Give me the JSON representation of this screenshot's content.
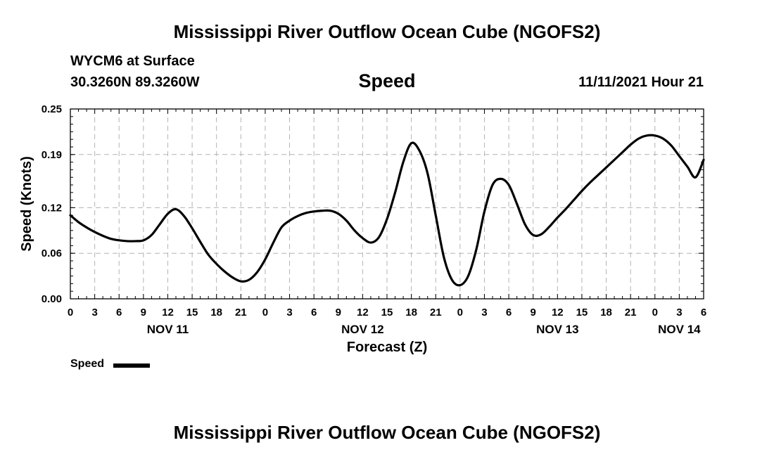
{
  "header": {
    "title": "Mississippi River Outflow Ocean Cube (NGOFS2)",
    "station": "WYCM6 at Surface",
    "coordinates": "30.3260N  89.3260W",
    "chart_name": "Speed",
    "timestamp": "11/11/2021 Hour 21"
  },
  "footer": {
    "title": "Mississippi River Outflow Ocean Cube (NGOFS2)"
  },
  "legend": {
    "label": "Speed",
    "color": "#000000"
  },
  "chart_data": {
    "type": "line",
    "title": "Speed",
    "xlabel": "Forecast (Z)",
    "ylabel": "Speed (Knots)",
    "x_unit": "hours since 11/11/2021 00Z",
    "xlim": [
      0,
      78
    ],
    "ylim": [
      0,
      0.25
    ],
    "y_ticks": [
      0.0,
      0.06,
      0.12,
      0.19,
      0.25
    ],
    "y_tick_labels": [
      "0.00",
      "0.06",
      "0.12",
      "0.19",
      "0.25"
    ],
    "x_ticks": [
      0,
      3,
      6,
      9,
      12,
      15,
      18,
      21,
      24,
      27,
      30,
      33,
      36,
      39,
      42,
      45,
      48,
      51,
      54,
      57,
      60,
      63,
      66,
      69,
      72,
      75,
      78
    ],
    "x_tick_labels": [
      "0",
      "3",
      "6",
      "9",
      "12",
      "15",
      "18",
      "21",
      "0",
      "3",
      "6",
      "9",
      "12",
      "15",
      "18",
      "21",
      "0",
      "3",
      "6",
      "9",
      "12",
      "15",
      "18",
      "21",
      "0",
      "3",
      "6"
    ],
    "day_labels": [
      {
        "x": 12,
        "label": "NOV 11"
      },
      {
        "x": 36,
        "label": "NOV 12"
      },
      {
        "x": 60,
        "label": "NOV 13"
      },
      {
        "x": 75,
        "label": "NOV 14"
      }
    ],
    "grid": true,
    "legend_position": "bottom-left",
    "series": [
      {
        "name": "Speed",
        "color": "#000000",
        "x": [
          0,
          1,
          2,
          3,
          4,
          5,
          6,
          7,
          8,
          9,
          10,
          11,
          12,
          13,
          14,
          15,
          16,
          17,
          18,
          19,
          20,
          21,
          22,
          23,
          24,
          25,
          26,
          27,
          28,
          29,
          30,
          31,
          32,
          33,
          34,
          35,
          36,
          37,
          38,
          39,
          40,
          41,
          42,
          43,
          44,
          45,
          46,
          47,
          48,
          49,
          50,
          51,
          52,
          53,
          54,
          55,
          56,
          57,
          58,
          59,
          60,
          61,
          62,
          63,
          64,
          65,
          66,
          67,
          68,
          69,
          70,
          71,
          72,
          73,
          74,
          75,
          76,
          77,
          78
        ],
        "values": [
          0.11,
          0.101,
          0.094,
          0.088,
          0.083,
          0.079,
          0.077,
          0.076,
          0.076,
          0.077,
          0.084,
          0.098,
          0.112,
          0.118,
          0.109,
          0.093,
          0.075,
          0.058,
          0.046,
          0.036,
          0.028,
          0.023,
          0.025,
          0.035,
          0.052,
          0.074,
          0.094,
          0.103,
          0.109,
          0.113,
          0.115,
          0.116,
          0.116,
          0.112,
          0.103,
          0.09,
          0.08,
          0.074,
          0.081,
          0.105,
          0.14,
          0.18,
          0.205,
          0.195,
          0.165,
          0.11,
          0.055,
          0.025,
          0.018,
          0.03,
          0.065,
          0.115,
          0.15,
          0.158,
          0.15,
          0.125,
          0.098,
          0.084,
          0.085,
          0.095,
          0.107,
          0.118,
          0.13,
          0.142,
          0.153,
          0.163,
          0.173,
          0.183,
          0.193,
          0.203,
          0.211,
          0.215,
          0.215,
          0.211,
          0.202,
          0.188,
          0.174,
          0.16,
          0.183
        ]
      }
    ]
  }
}
